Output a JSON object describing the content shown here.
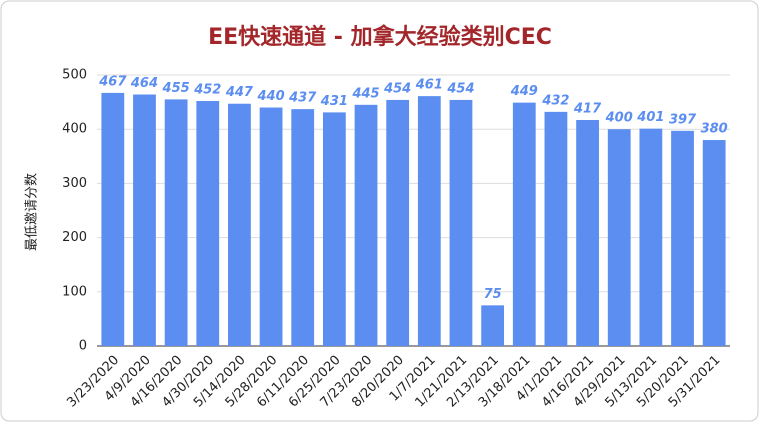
{
  "chart_data": {
    "type": "bar",
    "title": "EE快速通道 - 加拿大经验类别CEC",
    "y_label": "最低邀请分数",
    "categories": [
      "3/23/2020",
      "4/9/2020",
      "4/16/2020",
      "4/30/2020",
      "5/14/2020",
      "5/28/2020",
      "6/11/2020",
      "6/25/2020",
      "7/23/2020",
      "8/20/2020",
      "1/7/2021",
      "1/21/2021",
      "2/13/2021",
      "3/18/2021",
      "4/1/2021",
      "4/16/2021",
      "4/29/2021",
      "5/13/2021",
      "5/20/2021",
      "5/31/2021"
    ],
    "values": [
      467,
      464,
      455,
      452,
      447,
      440,
      437,
      431,
      445,
      454,
      461,
      454,
      75,
      449,
      432,
      417,
      400,
      401,
      397,
      380
    ],
    "color": "#5b8ef0",
    "ylim": [
      0,
      500
    ],
    "yticks": [
      0,
      100,
      200,
      300,
      400,
      500
    ],
    "grid": true
  }
}
